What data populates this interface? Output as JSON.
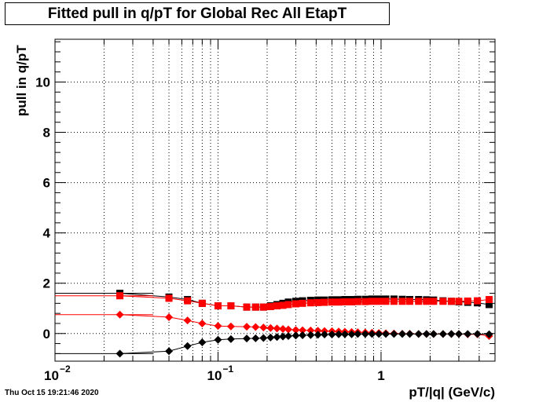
{
  "header": {
    "title": "Fitted pull in q/pT for Global Rec All EtapT",
    "datestamp": "Thu Oct 15 19:21:46 2020"
  },
  "chart_data": {
    "type": "scatter",
    "title": "Fitted pull in q/pT for Global Rec All EtapT",
    "xlabel": "pT/|q| (GeV/c)",
    "ylabel": "pull in q/pT",
    "x_scale": "log",
    "xlim": [
      0.01,
      5
    ],
    "ylim": [
      -1.1,
      11.7
    ],
    "grid": true,
    "x_tick_labels": [
      "10",
      "−2",
      "10",
      "−1",
      "1"
    ],
    "y_tick_labels": [
      "0",
      "2",
      "4",
      "6",
      "8",
      "10"
    ],
    "series": [
      {
        "marker": "square",
        "color": "#000000",
        "x": [
          0.025,
          0.05,
          0.065,
          0.08,
          0.1,
          0.12,
          0.15,
          0.17,
          0.19,
          0.21,
          0.23,
          0.25,
          0.27,
          0.3,
          0.33,
          0.37,
          0.41,
          0.45,
          0.5,
          0.55,
          0.6,
          0.66,
          0.72,
          0.8,
          0.88,
          0.97,
          1.07,
          1.2,
          1.35,
          1.5,
          1.7,
          1.9,
          2.1,
          2.4,
          2.7,
          3.0,
          3.4,
          3.9,
          4.6
        ],
        "y": [
          1.6,
          1.45,
          1.35,
          1.2,
          1.1,
          1.1,
          1.05,
          1.05,
          1.05,
          1.1,
          1.15,
          1.2,
          1.25,
          1.28,
          1.3,
          1.32,
          1.33,
          1.33,
          1.34,
          1.34,
          1.35,
          1.35,
          1.36,
          1.36,
          1.37,
          1.37,
          1.37,
          1.37,
          1.36,
          1.35,
          1.35,
          1.34,
          1.33,
          1.3,
          1.28,
          1.26,
          1.24,
          1.22,
          1.15
        ]
      },
      {
        "marker": "square",
        "color": "#ff0000",
        "x": [
          0.025,
          0.05,
          0.065,
          0.08,
          0.1,
          0.12,
          0.15,
          0.17,
          0.19,
          0.21,
          0.23,
          0.25,
          0.27,
          0.3,
          0.33,
          0.37,
          0.41,
          0.45,
          0.5,
          0.55,
          0.6,
          0.66,
          0.72,
          0.8,
          0.88,
          0.97,
          1.07,
          1.2,
          1.35,
          1.5,
          1.7,
          1.9,
          2.1,
          2.4,
          2.7,
          3.0,
          3.4,
          3.9,
          4.6
        ],
        "y": [
          1.5,
          1.4,
          1.3,
          1.2,
          1.1,
          1.1,
          1.05,
          1.05,
          1.05,
          1.07,
          1.1,
          1.12,
          1.15,
          1.18,
          1.2,
          1.22,
          1.23,
          1.24,
          1.25,
          1.25,
          1.26,
          1.26,
          1.27,
          1.27,
          1.28,
          1.28,
          1.28,
          1.28,
          1.28,
          1.28,
          1.28,
          1.28,
          1.28,
          1.28,
          1.28,
          1.28,
          1.29,
          1.3,
          1.35
        ]
      },
      {
        "marker": "diamond",
        "color": "#ff0000",
        "x": [
          0.025,
          0.05,
          0.065,
          0.08,
          0.1,
          0.12,
          0.15,
          0.17,
          0.19,
          0.21,
          0.23,
          0.25,
          0.27,
          0.3,
          0.33,
          0.37,
          0.41,
          0.45,
          0.5,
          0.55,
          0.6,
          0.66,
          0.72,
          0.8,
          0.88,
          0.97,
          1.07,
          1.2,
          1.35,
          1.5,
          1.7,
          1.9,
          2.1,
          2.4,
          2.7,
          3.0,
          3.4,
          3.9,
          4.6
        ],
        "y": [
          0.75,
          0.65,
          0.52,
          0.4,
          0.3,
          0.28,
          0.27,
          0.26,
          0.24,
          0.22,
          0.2,
          0.18,
          0.16,
          0.14,
          0.13,
          0.12,
          0.11,
          0.1,
          0.09,
          0.08,
          0.07,
          0.06,
          0.05,
          0.04,
          0.03,
          0.02,
          0.01,
          0.0,
          -0.01,
          -0.01,
          -0.02,
          -0.02,
          -0.02,
          -0.02,
          -0.02,
          -0.02,
          -0.03,
          -0.03,
          -0.1
        ]
      },
      {
        "marker": "diamond",
        "color": "#000000",
        "x": [
          0.025,
          0.05,
          0.065,
          0.08,
          0.1,
          0.12,
          0.15,
          0.17,
          0.19,
          0.21,
          0.23,
          0.25,
          0.27,
          0.3,
          0.33,
          0.37,
          0.41,
          0.45,
          0.5,
          0.55,
          0.6,
          0.66,
          0.72,
          0.8,
          0.88,
          0.97,
          1.07,
          1.2,
          1.35,
          1.5,
          1.7,
          1.9,
          2.1,
          2.4,
          2.7,
          3.0,
          3.4,
          3.9,
          4.6
        ],
        "y": [
          -0.8,
          -0.7,
          -0.5,
          -0.35,
          -0.25,
          -0.22,
          -0.2,
          -0.19,
          -0.18,
          -0.16,
          -0.14,
          -0.12,
          -0.1,
          -0.08,
          -0.07,
          -0.06,
          -0.05,
          -0.04,
          -0.04,
          -0.03,
          -0.03,
          -0.03,
          -0.02,
          -0.02,
          -0.02,
          -0.02,
          -0.02,
          -0.02,
          -0.02,
          -0.02,
          -0.02,
          -0.02,
          -0.02,
          -0.02,
          -0.02,
          -0.02,
          -0.02,
          -0.02,
          -0.03
        ]
      }
    ]
  }
}
